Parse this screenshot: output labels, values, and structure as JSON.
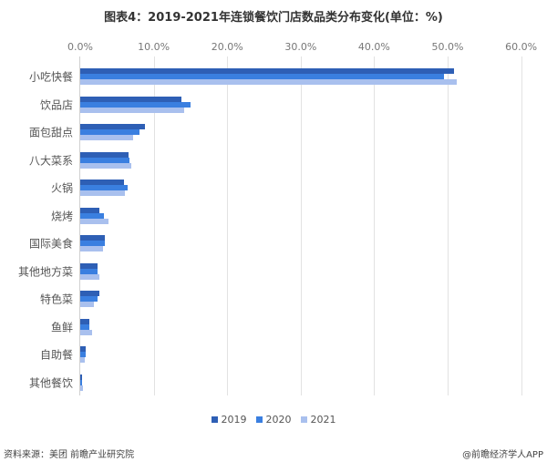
{
  "title": "图表4：2019-2021年连锁餐饮门店数品类分布变化(单位：%)",
  "source": "资料来源：美团 前瞻产业研究院",
  "credit": "@前瞻经济学人APP",
  "colors": {
    "2019": "#2E5FB5",
    "2020": "#3A7FE0",
    "2021": "#A9C0EE"
  },
  "chart_data": {
    "type": "bar",
    "orientation": "horizontal",
    "title": "图表4：2019-2021年连锁餐饮门店数品类分布变化(单位：%)",
    "xlabel": "",
    "ylabel": "",
    "xlim": [
      0,
      60
    ],
    "x_ticks": [
      "0.0%",
      "10.0%",
      "20.0%",
      "30.0%",
      "40.0%",
      "50.0%",
      "60.0%"
    ],
    "x_axis_position": "top",
    "grid": true,
    "legend_position": "bottom",
    "categories": [
      "小吃快餐",
      "饮品店",
      "面包甜点",
      "八大菜系",
      "火锅",
      "烧烤",
      "国际美食",
      "其他地方菜",
      "特色菜",
      "鱼鲜",
      "自助餐",
      "其他餐饮"
    ],
    "series": [
      {
        "name": "2019",
        "values": [
          50.9,
          13.8,
          8.8,
          6.6,
          6.0,
          2.6,
          3.3,
          2.4,
          2.6,
          1.3,
          0.7,
          0.3
        ]
      },
      {
        "name": "2020",
        "values": [
          49.5,
          15.0,
          8.1,
          6.7,
          6.5,
          3.2,
          3.3,
          2.4,
          2.4,
          1.2,
          0.7,
          0.3
        ]
      },
      {
        "name": "2021",
        "values": [
          51.2,
          14.1,
          7.2,
          6.9,
          6.1,
          3.8,
          3.1,
          2.6,
          1.9,
          1.6,
          0.6,
          0.4
        ]
      }
    ]
  }
}
